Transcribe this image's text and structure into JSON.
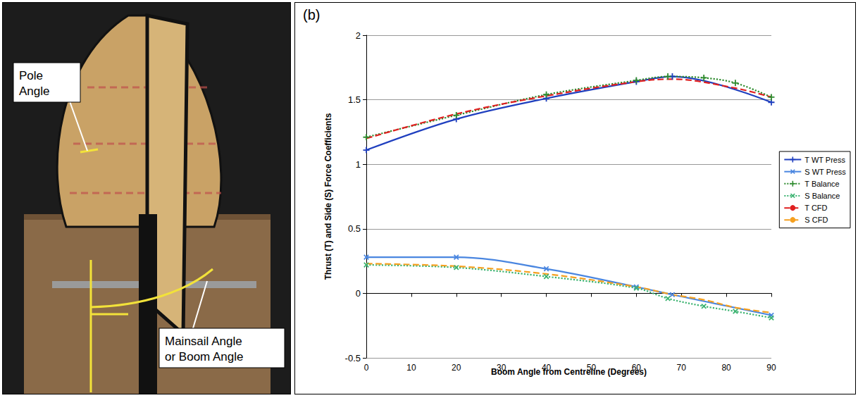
{
  "photo": {
    "labels": [
      "Pole Angle",
      "Mainsail Angle or Boom Angle"
    ]
  },
  "chart_data": {
    "type": "line",
    "panel": "(b)",
    "x_label": "Boom Angle from Centreline (Degrees)",
    "y_label": "Thrust (T) and Side (S) Force Coefficients",
    "xlim": [
      0,
      90
    ],
    "xticks": [
      0,
      10,
      20,
      30,
      40,
      50,
      60,
      70,
      80,
      90
    ],
    "ylim": [
      -0.5,
      2
    ],
    "yticks": [
      -0.5,
      0,
      0.5,
      1,
      1.5,
      2
    ],
    "grid": true,
    "legend": "right",
    "series": [
      {
        "name": "T WT Press",
        "color": "#1f3fbf",
        "line_style": "solid",
        "marker": "plus",
        "x": [
          0,
          20,
          40,
          60,
          68,
          90
        ],
        "values": [
          1.11,
          1.35,
          1.51,
          1.64,
          1.68,
          1.48
        ]
      },
      {
        "name": "S WT Press",
        "color": "#4a86e0",
        "line_style": "solid",
        "marker": "cross",
        "x": [
          0,
          20,
          40,
          60,
          68,
          90
        ],
        "values": [
          0.28,
          0.28,
          0.19,
          0.05,
          -0.01,
          -0.17
        ]
      },
      {
        "name": "T Balance",
        "color": "#2e8b2e",
        "line_style": "dotted",
        "marker": "plus",
        "x": [
          0,
          20,
          40,
          60,
          67,
          75,
          82,
          90
        ],
        "values": [
          1.21,
          1.38,
          1.54,
          1.65,
          1.68,
          1.67,
          1.63,
          1.52
        ]
      },
      {
        "name": "S Balance",
        "color": "#3cb371",
        "line_style": "dotted",
        "marker": "cross",
        "x": [
          0,
          20,
          40,
          60,
          67,
          75,
          82,
          90
        ],
        "values": [
          0.22,
          0.2,
          0.13,
          0.04,
          -0.04,
          -0.1,
          -0.14,
          -0.19
        ]
      },
      {
        "name": "T CFD",
        "color": "#e02020",
        "line_style": "dashed",
        "marker": "none",
        "x": [
          0,
          20,
          40,
          60,
          68,
          82,
          90
        ],
        "values": [
          1.2,
          1.39,
          1.53,
          1.64,
          1.66,
          1.59,
          1.52
        ]
      },
      {
        "name": "S CFD",
        "color": "#f5a020",
        "line_style": "dashed",
        "marker": "none",
        "x": [
          0,
          20,
          40,
          60,
          68,
          75,
          82,
          90
        ],
        "values": [
          0.23,
          0.21,
          0.15,
          0.05,
          -0.01,
          -0.05,
          -0.11,
          -0.15
        ]
      }
    ]
  }
}
